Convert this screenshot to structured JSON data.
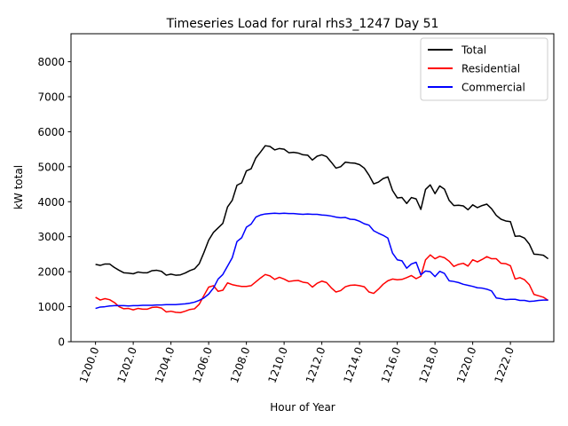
{
  "chart_data": {
    "type": "line",
    "title": "Timeseries Load for rural rhs3_1247  Day 51",
    "xlabel": "Hour of Year",
    "ylabel": "kW total",
    "xlim": [
      1198.7,
      1224.3
    ],
    "ylim": [
      0,
      8800
    ],
    "xticks": [
      1200,
      1202,
      1204,
      1206,
      1208,
      1210,
      1212,
      1214,
      1216,
      1218,
      1220,
      1222
    ],
    "xtick_labels": [
      "1200.0",
      "1202.0",
      "1204.0",
      "1206.0",
      "1208.0",
      "1210.0",
      "1212.0",
      "1214.0",
      "1216.0",
      "1218.0",
      "1220.0",
      "1222.0"
    ],
    "yticks": [
      0,
      1000,
      2000,
      3000,
      4000,
      5000,
      6000,
      7000,
      8000
    ],
    "ytick_labels": [
      "0",
      "1000",
      "2000",
      "3000",
      "4000",
      "5000",
      "6000",
      "7000",
      "8000"
    ],
    "legend_position": "top-right",
    "x_start": 1200,
    "x_step": 0.25,
    "series": [
      {
        "name": "Total",
        "color": "#000000",
        "values": [
          2210,
          2180,
          2220,
          2220,
          2120,
          2040,
          1970,
          1960,
          1940,
          1990,
          1970,
          1970,
          2030,
          2040,
          2010,
          1900,
          1930,
          1900,
          1910,
          1960,
          2030,
          2080,
          2230,
          2550,
          2900,
          3120,
          3250,
          3380,
          3850,
          4040,
          4470,
          4540,
          4880,
          4940,
          5250,
          5420,
          5600,
          5580,
          5480,
          5520,
          5500,
          5400,
          5410,
          5390,
          5340,
          5330,
          5190,
          5300,
          5340,
          5290,
          5130,
          4960,
          5000,
          5130,
          5110,
          5100,
          5060,
          4960,
          4760,
          4510,
          4560,
          4660,
          4710,
          4320,
          4110,
          4120,
          3950,
          4120,
          4080,
          3780,
          4350,
          4480,
          4230,
          4450,
          4360,
          4040,
          3890,
          3900,
          3880,
          3770,
          3910,
          3830,
          3890,
          3930,
          3800,
          3610,
          3500,
          3450,
          3430,
          3010,
          3020,
          2960,
          2790,
          2500,
          2490,
          2470,
          2370
        ]
      },
      {
        "name": "Residential",
        "color": "#ff0000",
        "values": [
          1270,
          1190,
          1230,
          1200,
          1120,
          1000,
          940,
          950,
          910,
          950,
          930,
          930,
          980,
          990,
          960,
          850,
          870,
          840,
          830,
          870,
          920,
          940,
          1070,
          1320,
          1560,
          1600,
          1440,
          1470,
          1680,
          1630,
          1600,
          1580,
          1580,
          1600,
          1710,
          1820,
          1920,
          1880,
          1780,
          1840,
          1790,
          1720,
          1740,
          1750,
          1700,
          1680,
          1560,
          1670,
          1730,
          1690,
          1540,
          1420,
          1460,
          1570,
          1610,
          1620,
          1600,
          1570,
          1420,
          1380,
          1500,
          1640,
          1740,
          1790,
          1770,
          1780,
          1830,
          1890,
          1800,
          1870,
          2340,
          2480,
          2370,
          2440,
          2400,
          2300,
          2150,
          2210,
          2240,
          2160,
          2340,
          2280,
          2350,
          2430,
          2370,
          2370,
          2240,
          2230,
          2170,
          1790,
          1830,
          1770,
          1630,
          1350,
          1310,
          1270,
          1180
        ]
      },
      {
        "name": "Commercial",
        "color": "#0000ff",
        "values": [
          950,
          990,
          1000,
          1020,
          1030,
          1030,
          1030,
          1020,
          1030,
          1030,
          1040,
          1040,
          1040,
          1050,
          1050,
          1060,
          1060,
          1060,
          1070,
          1080,
          1100,
          1130,
          1180,
          1250,
          1360,
          1530,
          1790,
          1920,
          2160,
          2400,
          2860,
          2970,
          3270,
          3360,
          3560,
          3620,
          3650,
          3660,
          3670,
          3660,
          3670,
          3660,
          3660,
          3650,
          3640,
          3650,
          3640,
          3640,
          3620,
          3610,
          3590,
          3560,
          3540,
          3550,
          3500,
          3490,
          3440,
          3370,
          3330,
          3170,
          3100,
          3040,
          2960,
          2530,
          2340,
          2310,
          2100,
          2220,
          2270,
          1910,
          2020,
          2000,
          1860,
          2010,
          1950,
          1740,
          1720,
          1690,
          1640,
          1610,
          1580,
          1540,
          1530,
          1500,
          1450,
          1250,
          1230,
          1200,
          1210,
          1210,
          1180,
          1180,
          1150,
          1160,
          1180,
          1190,
          1190
        ]
      }
    ]
  }
}
